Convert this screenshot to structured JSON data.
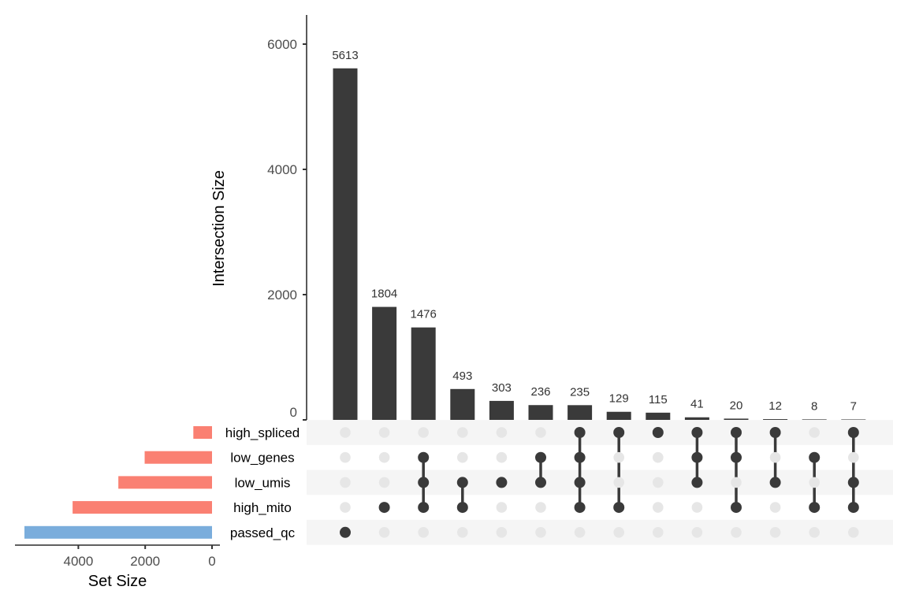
{
  "chart_data": {
    "type": "upset",
    "intersection_chart": {
      "type": "bar",
      "ylabel": "Intersection Size",
      "ylim": [
        0,
        6000
      ],
      "yticks": [
        0,
        2000,
        4000,
        6000
      ],
      "ytick_labels": [
        "0",
        "2000",
        "4000",
        "6000"
      ],
      "bar_color": "#3a3a3a",
      "values": [
        5613,
        1804,
        1476,
        493,
        303,
        236,
        235,
        129,
        115,
        41,
        20,
        12,
        8,
        7
      ],
      "labels": [
        "5613",
        "1804",
        "1476",
        "493",
        "303",
        "236",
        "235",
        "129",
        "115",
        "41",
        "20",
        "12",
        "8",
        "7"
      ]
    },
    "sets": [
      "high_spliced",
      "low_genes",
      "low_umis",
      "high_mito",
      "passed_qc"
    ],
    "set_size_chart": {
      "type": "bar",
      "orientation": "horizontal-reversed",
      "xlabel": "Set Size",
      "xlim": [
        0,
        6000
      ],
      "xticks": [
        0,
        2000,
        4000
      ],
      "xtick_labels": [
        "0",
        "2000",
        "4000"
      ],
      "values": [
        559,
        2016,
        2803,
        4172,
        5613
      ],
      "colors": [
        "#fa8072",
        "#fa8072",
        "#fa8072",
        "#fa8072",
        "#7aaddc"
      ]
    },
    "matrix": {
      "active_color": "#3a3a3a",
      "inactive_color": "#e6e6e6",
      "stripe_color": "#f5f5f5",
      "intersections": [
        [
          "passed_qc"
        ],
        [
          "high_mito"
        ],
        [
          "low_genes",
          "low_umis",
          "high_mito"
        ],
        [
          "low_umis",
          "high_mito"
        ],
        [
          "low_umis"
        ],
        [
          "low_genes",
          "low_umis"
        ],
        [
          "high_spliced",
          "low_genes",
          "low_umis",
          "high_mito"
        ],
        [
          "high_spliced",
          "high_mito"
        ],
        [
          "high_spliced"
        ],
        [
          "high_spliced",
          "low_genes",
          "low_umis"
        ],
        [
          "high_spliced",
          "low_genes",
          "high_mito"
        ],
        [
          "high_spliced",
          "low_umis"
        ],
        [
          "low_genes",
          "high_mito"
        ],
        [
          "high_spliced",
          "low_umis",
          "high_mito"
        ]
      ]
    }
  }
}
